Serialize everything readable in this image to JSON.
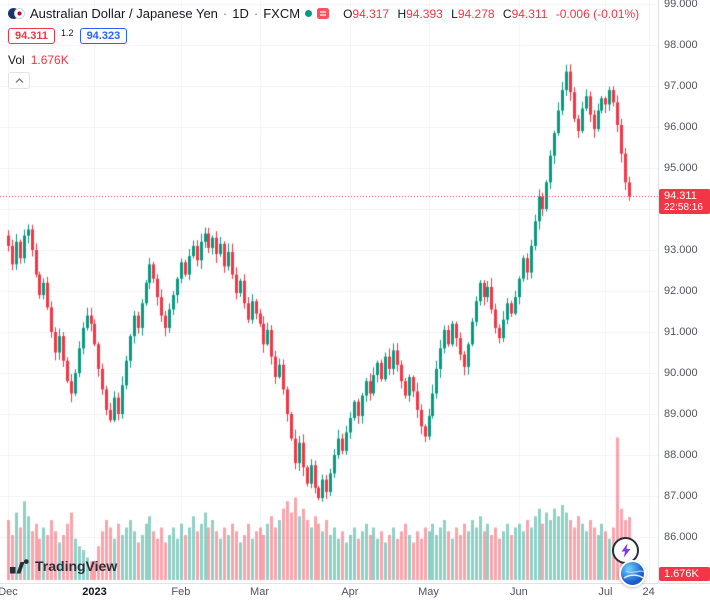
{
  "legend": {
    "title": "Australian Dollar / Japanese Yen",
    "sep": "·",
    "interval": "1D",
    "exchange": "FXCM",
    "o_label": "O",
    "o": "94.317",
    "h_label": "H",
    "h": "94.393",
    "l_label": "L",
    "l": "94.278",
    "c_label": "C",
    "c": "94.311",
    "change": "-0.006 (-0.01%)",
    "bid": "94.311",
    "spread": "1.2",
    "ask": "94.323",
    "vol_label": "Vol",
    "vol_value": "1.676K"
  },
  "price_scale": {
    "ticks": [
      {
        "label": "99.000",
        "value": 99
      },
      {
        "label": "98.000",
        "value": 98
      },
      {
        "label": "97.000",
        "value": 97
      },
      {
        "label": "96.000",
        "value": 96
      },
      {
        "label": "95.000",
        "value": 95
      },
      {
        "label": "93.000",
        "value": 93
      },
      {
        "label": "92.000",
        "value": 92
      },
      {
        "label": "91.000",
        "value": 91
      },
      {
        "label": "90.000",
        "value": 90
      },
      {
        "label": "89.000",
        "value": 89
      },
      {
        "label": "88.000",
        "value": 88
      },
      {
        "label": "87.000",
        "value": 87
      },
      {
        "label": "86.000",
        "value": 86
      }
    ],
    "current_label": "94.311",
    "countdown": "22:58:16",
    "volume_badge": "1.676K"
  },
  "time_scale": {
    "ticks": [
      {
        "label": "Dec",
        "index": 0
      },
      {
        "label": "2023",
        "index": 22,
        "year": true
      },
      {
        "label": "Feb",
        "index": 44
      },
      {
        "label": "Mar",
        "index": 64
      },
      {
        "label": "Apr",
        "index": 87
      },
      {
        "label": "May",
        "index": 107
      },
      {
        "label": "Jun",
        "index": 130
      },
      {
        "label": "Jul",
        "index": 152
      },
      {
        "label": "24",
        "index": 163
      }
    ]
  },
  "branding": {
    "logo_text": "TradingView"
  },
  "colors": {
    "up": "#089981",
    "down": "#F23645",
    "vol_up": "rgba(8,153,129,0.45)",
    "vol_down": "rgba(242,54,69,0.45)",
    "grid": "#F0F3FA",
    "axis_text": "#50535E",
    "text": "#131722",
    "badge_red": "#F23645",
    "accent_blue": "#2962FF",
    "border": "#E0E3EB"
  },
  "chart_data": {
    "type": "candlestick+volume",
    "title": "Australian Dollar / Japanese Yen, 1D, FXCM",
    "ylim": [
      85.7,
      99.2
    ],
    "current_price": 94.311,
    "last_candle": {
      "o": 94.317,
      "h": 94.393,
      "l": 94.278,
      "c": 94.311
    },
    "last_volume_label": "1.676K",
    "volume_unit": "K",
    "volume_scale_max": 4.0,
    "closes": [
      93.1,
      92.65,
      93.2,
      92.8,
      93.35,
      93.5,
      93.0,
      92.4,
      91.9,
      92.2,
      91.6,
      91.0,
      90.5,
      90.9,
      90.3,
      89.8,
      89.5,
      90.0,
      90.6,
      91.1,
      91.4,
      91.2,
      90.7,
      90.1,
      89.6,
      89.1,
      88.85,
      89.4,
      89.0,
      89.7,
      90.3,
      90.9,
      91.4,
      91.1,
      91.7,
      92.2,
      92.65,
      92.3,
      91.85,
      91.4,
      91.1,
      91.55,
      91.9,
      92.3,
      92.7,
      92.4,
      92.85,
      93.1,
      92.75,
      93.2,
      93.4,
      93.05,
      93.3,
      92.9,
      93.15,
      92.6,
      92.95,
      92.4,
      91.95,
      92.25,
      91.7,
      91.3,
      91.75,
      91.45,
      91.2,
      90.7,
      91.05,
      90.4,
      89.9,
      90.2,
      89.6,
      89.0,
      88.4,
      87.8,
      88.3,
      87.7,
      87.3,
      87.75,
      87.2,
      86.95,
      87.4,
      87.1,
      87.55,
      88.0,
      88.4,
      88.1,
      88.55,
      88.9,
      89.3,
      88.95,
      89.45,
      89.8,
      89.5,
      89.95,
      90.25,
      89.85,
      90.4,
      90.1,
      90.55,
      90.2,
      89.8,
      89.45,
      89.9,
      89.55,
      89.1,
      88.7,
      88.45,
      88.95,
      89.5,
      90.1,
      90.6,
      91.05,
      90.7,
      91.2,
      90.85,
      90.45,
      90.15,
      90.7,
      91.25,
      91.75,
      92.2,
      91.85,
      92.1,
      91.55,
      91.1,
      90.85,
      91.3,
      91.7,
      91.45,
      91.85,
      92.3,
      92.8,
      92.45,
      93.1,
      93.7,
      94.3,
      94.0,
      94.65,
      95.3,
      95.85,
      96.4,
      96.9,
      97.35,
      96.85,
      96.2,
      95.9,
      96.45,
      96.75,
      96.3,
      95.95,
      96.4,
      96.7,
      96.55,
      96.9,
      96.6,
      96.05,
      95.35,
      94.65,
      94.311
    ],
    "volumes": [
      1.6,
      1.2,
      1.8,
      1.4,
      2.1,
      1.7,
      1.3,
      1.5,
      1.1,
      1.4,
      1.2,
      1.6,
      1.3,
      1.0,
      1.2,
      1.5,
      1.8,
      1.1,
      0.9,
      0.8,
      0.6,
      0.5,
      0.5,
      0.9,
      1.3,
      1.6,
      1.4,
      1.1,
      1.5,
      1.2,
      1.4,
      1.6,
      1.3,
      1.0,
      1.2,
      1.5,
      1.7,
      1.3,
      1.1,
      1.4,
      1.0,
      1.2,
      1.4,
      1.1,
      1.5,
      1.2,
      1.4,
      1.7,
      1.3,
      1.5,
      1.8,
      1.4,
      1.6,
      1.3,
      1.1,
      1.4,
      1.2,
      1.5,
      1.3,
      1.0,
      1.2,
      1.5,
      1.1,
      1.3,
      1.4,
      1.2,
      1.5,
      1.7,
      1.4,
      1.6,
      1.9,
      2.1,
      1.8,
      2.2,
      1.7,
      1.9,
      1.6,
      1.4,
      1.7,
      1.5,
      1.3,
      1.6,
      1.2,
      1.4,
      1.1,
      1.3,
      1.0,
      1.2,
      1.4,
      1.1,
      1.3,
      1.5,
      1.2,
      1.4,
      1.1,
      1.3,
      1.0,
      1.2,
      1.4,
      1.1,
      1.3,
      1.5,
      1.2,
      1.0,
      1.3,
      1.1,
      1.4,
      1.3,
      1.5,
      1.2,
      1.4,
      1.6,
      1.3,
      1.1,
      1.4,
      1.2,
      1.5,
      1.3,
      1.6,
      1.4,
      1.7,
      1.3,
      1.5,
      1.2,
      1.4,
      1.1,
      1.3,
      1.5,
      1.2,
      1.4,
      1.5,
      1.3,
      1.6,
      1.4,
      1.7,
      1.9,
      1.5,
      1.8,
      1.6,
      1.9,
      1.7,
      2.0,
      1.8,
      1.6,
      1.4,
      1.7,
      1.5,
      1.3,
      1.6,
      1.4,
      1.2,
      1.5,
      1.3,
      1.1,
      1.4,
      3.8,
      1.9,
      1.6,
      1.676
    ]
  }
}
